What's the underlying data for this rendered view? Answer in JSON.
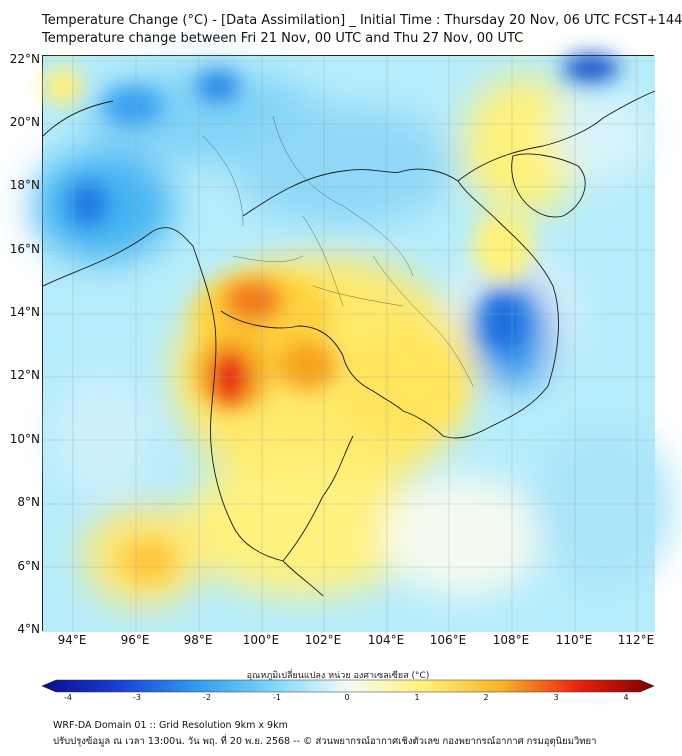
{
  "title": {
    "line1": "Temperature Change (°C) - [Data Assimilation] _ Initial Time : Thursday 20 Nov, 06 UTC FCST+144",
    "line2": "Temperature change between Fri 21 Nov, 00 UTC and Thu 27 Nov, 00 UTC"
  },
  "axes": {
    "latitudes": [
      "22°N",
      "20°N",
      "18°N",
      "16°N",
      "14°N",
      "12°N",
      "10°N",
      "8°N",
      "6°N",
      "4°N"
    ],
    "longitudes": [
      "94°E",
      "96°E",
      "98°E",
      "100°E",
      "102°E",
      "104°E",
      "106°E",
      "108°E",
      "110°E",
      "112°E"
    ]
  },
  "colorbar": {
    "label": "อุณหภูมิเปลี่ยนแปลง หน่วย องศาเซลเซียส (°C)",
    "ticks": [
      "-4",
      "-3",
      "-2",
      "-1",
      "0",
      "1",
      "2",
      "3",
      "4"
    ]
  },
  "footer": {
    "line1": "WRF-DA Domain 01 :: Grid Resolution 9km x 9km",
    "line2": "ปรับปรุงข้อมูล ณ เวลา 13:00น. วัน พฤ. ที่ 20 พ.ย. 2568 -- © ส่วนพยากรณ์อากาศเชิงตัวเลข กองพยากรณ์อากาศ กรมอุตุนิยมวิทยา"
  },
  "colors": {
    "cold_deep": "#0a0a8c",
    "cold": "#3aa0f0",
    "cool": "#9fe0f8",
    "neutral": "#f4fbf8",
    "warm": "#fff060",
    "hot": "#f7a51f",
    "hottest": "#e81010",
    "hot_deep": "#7a0000"
  }
}
